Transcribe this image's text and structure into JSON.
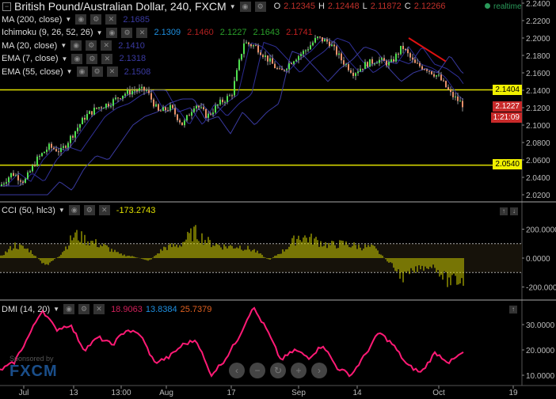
{
  "header": {
    "title": "British Pound/Australian Dollar, 240, FXCM",
    "ohlc": {
      "o_label": "O",
      "o": "2.12345",
      "h_label": "H",
      "h": "2.12448",
      "l_label": "L",
      "l": "2.11872",
      "c_label": "C",
      "c": "2.12266"
    },
    "realtime": "realtime"
  },
  "indicators": [
    {
      "label": "MA (200, close)",
      "values": [
        {
          "v": "2.1685",
          "color": "#3a3aa0"
        }
      ]
    },
    {
      "label": "Ichimoku (9, 26, 52, 26)",
      "values": [
        {
          "v": "2.1309",
          "color": "#1e8fe0"
        },
        {
          "v": "2.1460",
          "color": "#b02020"
        },
        {
          "v": "2.1227",
          "color": "#2aa02a"
        },
        {
          "v": "2.1643",
          "color": "#2aa02a"
        },
        {
          "v": "2.1741",
          "color": "#c02020"
        }
      ]
    },
    {
      "label": "MA (20, close)",
      "values": [
        {
          "v": "2.1410",
          "color": "#3a3aa0"
        }
      ]
    },
    {
      "label": "EMA (7, close)",
      "values": [
        {
          "v": "2.1318",
          "color": "#3a3aa0"
        }
      ]
    },
    {
      "label": "EMA (55, close)",
      "values": [
        {
          "v": "2.1508",
          "color": "#3a3aa0"
        }
      ]
    }
  ],
  "price_tags": {
    "level_high": "2.1404",
    "last_price": "2.1227",
    "countdown": "1:21:09",
    "level_low": "2.0540",
    "left_label": "2.1741"
  },
  "cci": {
    "label": "CCI (50, hlc3)",
    "value": "-173.2743"
  },
  "dmi": {
    "label": "DMI (14, 20)",
    "values": [
      {
        "v": "18.9063",
        "color": "#d0205a"
      },
      {
        "v": "13.8384",
        "color": "#1e8fe0"
      },
      {
        "v": "25.7379",
        "color": "#e06020"
      }
    ]
  },
  "sponsor": {
    "text": "Sponsored by",
    "logo": "FXCM"
  },
  "nav_buttons": [
    "‹",
    "−",
    "↻",
    "+",
    "›"
  ],
  "colors": {
    "up": "#4fe04f",
    "down": "#e8906a",
    "level": "#e0e000",
    "cci": "#d8d800",
    "dmi": "#ff1a75",
    "trend": "#e01010"
  },
  "chart_data": [
    {
      "type": "candlestick",
      "title": "British Pound/Australian Dollar, 240, FXCM",
      "y_ticks": [
        "2.2400",
        "2.2200",
        "2.2000",
        "2.1800",
        "2.1600",
        "2.1400",
        "2.1200",
        "2.1000",
        "2.0800",
        "2.0600",
        "2.0400",
        "2.0200"
      ],
      "ylim": [
        2.014,
        2.244
      ],
      "x_ticks": [
        "Jul",
        "13",
        "13:00",
        "Aug",
        "17",
        "Sep",
        "14",
        "Oct",
        "19"
      ],
      "close_path": [
        2.03,
        2.045,
        2.035,
        2.06,
        2.075,
        2.07,
        2.09,
        2.11,
        2.12,
        2.125,
        2.135,
        2.14,
        2.14,
        2.115,
        2.12,
        2.1,
        2.125,
        2.11,
        2.125,
        2.135,
        2.195,
        2.19,
        2.175,
        2.16,
        2.175,
        2.185,
        2.2,
        2.195,
        2.175,
        2.16,
        2.17,
        2.175,
        2.17,
        2.19,
        2.17,
        2.165,
        2.155,
        2.135,
        2.123
      ],
      "horizontal_levels": [
        2.1404,
        2.054
      ],
      "trendline": [
        2.2,
        2.173
      ]
    },
    {
      "type": "bar",
      "title": "CCI (50, hlc3)",
      "y_ticks": [
        "200.0000",
        "0.0000",
        "-200.0000"
      ],
      "ylim": [
        -260,
        300
      ],
      "band": [
        100,
        -100
      ],
      "values_path": [
        10,
        100,
        60,
        -60,
        20,
        180,
        130,
        90,
        30,
        10,
        -20,
        80,
        100,
        200,
        120,
        90,
        90,
        60,
        -15,
        60,
        170,
        140,
        100,
        110,
        90,
        80,
        -30,
        -150,
        -80,
        -60,
        -180,
        -170
      ]
    },
    {
      "type": "line",
      "title": "DMI (14, 20)",
      "y_ticks": [
        "30.0000",
        "20.0000",
        "10.0000"
      ],
      "ylim": [
        3,
        40
      ],
      "values_path": [
        12,
        15,
        25,
        36,
        28,
        30,
        20,
        25,
        22,
        28,
        26,
        15,
        17,
        22,
        24,
        10,
        16,
        25,
        37,
        28,
        16,
        20,
        17,
        22,
        13,
        10,
        18,
        27,
        22,
        14,
        11,
        19,
        15,
        19
      ]
    }
  ]
}
